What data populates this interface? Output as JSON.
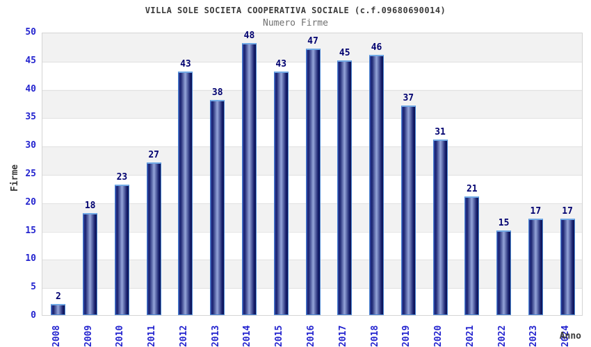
{
  "header": {
    "title": "VILLA SOLE SOCIETA COOPERATIVA SOCIALE (c.f.09680690014)",
    "subtitle": "Numero Firme"
  },
  "axes": {
    "y_label": "Firme",
    "x_label": "Anno",
    "y_ticks": [
      0,
      5,
      10,
      15,
      20,
      25,
      30,
      35,
      40,
      45,
      50
    ]
  },
  "chart_data": {
    "type": "bar",
    "title": "VILLA SOLE SOCIETA COOPERATIVA SOCIALE (c.f.09680690014)",
    "subtitle": "Numero Firme",
    "xlabel": "Anno",
    "ylabel": "Firme",
    "ylim": [
      0,
      50
    ],
    "y_tick_step": 5,
    "grid": "alternating-horizontal-bands",
    "legend_position": "none",
    "bar_value_labels_shown": true,
    "categories": [
      "2008",
      "2009",
      "2010",
      "2011",
      "2012",
      "2013",
      "2014",
      "2015",
      "2016",
      "2017",
      "2018",
      "2019",
      "2020",
      "2021",
      "2022",
      "2023",
      "2024"
    ],
    "values": [
      2,
      18,
      23,
      27,
      43,
      38,
      48,
      43,
      47,
      45,
      46,
      37,
      31,
      21,
      15,
      17,
      17
    ]
  },
  "colors": {
    "tick_label_blue": "#2424cf",
    "value_label_navy": "#000070",
    "title_gray": "#3a3a3a",
    "subtitle_gray": "#707070",
    "band_gray": "#f2f2f2",
    "band_white": "#ffffff",
    "plot_border": "#d4d4d4",
    "bar_edge_dark": "#18216e",
    "bar_center_light": "#95a5da",
    "bar_cap_light_blue": "#72aae6"
  }
}
